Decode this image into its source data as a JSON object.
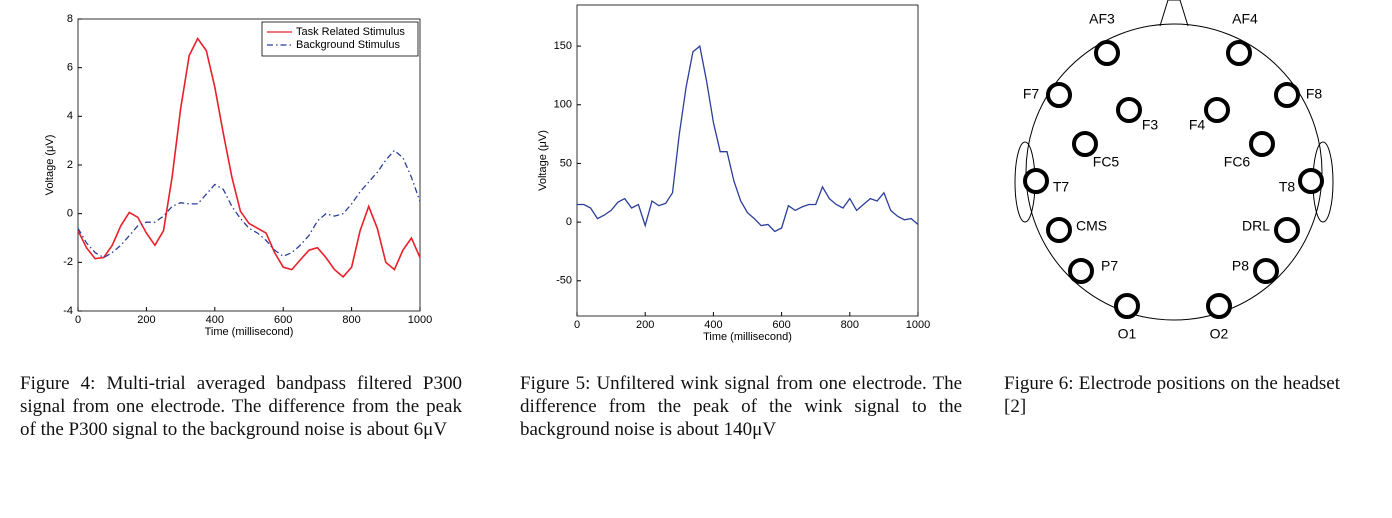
{
  "chart_data": [
    {
      "type": "line",
      "xlabel": "Time (millisecond)",
      "ylabel": "Voltage (μV)",
      "x": [
        0,
        25,
        50,
        75,
        100,
        125,
        150,
        175,
        200,
        225,
        250,
        275,
        300,
        325,
        350,
        375,
        400,
        425,
        450,
        475,
        500,
        525,
        550,
        575,
        600,
        625,
        650,
        675,
        700,
        725,
        750,
        775,
        800,
        825,
        850,
        875,
        900,
        925,
        950,
        975,
        1000
      ],
      "series": [
        {
          "name": "Task Related Stimulus",
          "color": "#e8202a",
          "style": "solid",
          "values": [
            -0.7,
            -1.4,
            -1.85,
            -1.8,
            -1.3,
            -0.5,
            0.05,
            -0.15,
            -0.8,
            -1.3,
            -0.7,
            1.5,
            4.3,
            6.5,
            7.2,
            6.7,
            5.2,
            3.3,
            1.5,
            0.1,
            -0.4,
            -0.6,
            -0.8,
            -1.6,
            -2.2,
            -2.3,
            -1.9,
            -1.5,
            -1.4,
            -1.8,
            -2.3,
            -2.6,
            -2.2,
            -0.7,
            0.3,
            -0.6,
            -2.0,
            -2.3,
            -1.5,
            -1.0,
            -1.8
          ]
        },
        {
          "name": "Background Stimulus",
          "color": "#2b3f99",
          "style": "dashdot",
          "values": [
            -0.6,
            -1.2,
            -1.6,
            -1.8,
            -1.6,
            -1.3,
            -0.9,
            -0.5,
            -0.35,
            -0.35,
            -0.1,
            0.3,
            0.45,
            0.4,
            0.4,
            0.8,
            1.2,
            1.0,
            0.3,
            -0.2,
            -0.6,
            -0.8,
            -1.1,
            -1.5,
            -1.75,
            -1.6,
            -1.3,
            -0.9,
            -0.3,
            0.0,
            -0.1,
            0.0,
            0.4,
            0.9,
            1.3,
            1.7,
            2.2,
            2.6,
            2.3,
            1.5,
            0.5
          ]
        }
      ],
      "xlim": [
        0,
        1000
      ],
      "xticks": [
        0,
        200,
        400,
        600,
        800,
        1000
      ],
      "ylim": [
        -4,
        8
      ],
      "yticks": [
        -4,
        -2,
        0,
        2,
        4,
        6,
        8
      ],
      "legend": "upper right"
    },
    {
      "type": "line",
      "xlabel": "Time (millisecond)",
      "ylabel": "Voltage (μV)",
      "x": [
        0,
        20,
        40,
        60,
        80,
        100,
        120,
        140,
        160,
        180,
        200,
        220,
        240,
        260,
        280,
        300,
        320,
        340,
        360,
        380,
        400,
        420,
        440,
        460,
        480,
        500,
        520,
        540,
        560,
        580,
        600,
        620,
        640,
        660,
        680,
        700,
        720,
        740,
        760,
        780,
        800,
        820,
        840,
        860,
        880,
        900,
        920,
        940,
        960,
        980,
        1000
      ],
      "series": [
        {
          "color": "#2b3f99",
          "style": "solid",
          "values": [
            15,
            15,
            12,
            3,
            6,
            10,
            17,
            20,
            12,
            15,
            -3,
            18,
            14,
            16,
            25,
            75,
            115,
            145,
            150,
            120,
            85,
            60,
            60,
            35,
            18,
            8,
            3,
            -3,
            -2,
            -8,
            -5,
            14,
            10,
            13,
            15,
            15,
            30,
            20,
            15,
            12,
            20,
            10,
            15,
            20,
            18,
            25,
            10,
            5,
            2,
            3,
            -2
          ]
        }
      ],
      "xlim": [
        0,
        1000
      ],
      "xticks": [
        0,
        200,
        400,
        600,
        800,
        1000
      ],
      "ylim": [
        -80,
        185
      ],
      "yticks": [
        -50,
        0,
        50,
        100,
        150
      ]
    }
  ],
  "figure6": {
    "electrodes": [
      "AF3",
      "AF4",
      "F7",
      "F8",
      "F3",
      "F4",
      "FC5",
      "FC6",
      "T7",
      "T8",
      "CMS",
      "DRL",
      "P7",
      "P8",
      "O1",
      "O2"
    ]
  },
  "captions": [
    "Figure 4: Multi-trial averaged bandpass filtered P300 signal from one electrode. The difference from the peak of the P300 signal to the background noise is about 6μV",
    "Figure 5: Unfiltered wink signal from one electrode. The difference from the peak of the wink signal to the background noise is about 140μV",
    "Figure 6: Electrode positions on the headset [2]"
  ]
}
